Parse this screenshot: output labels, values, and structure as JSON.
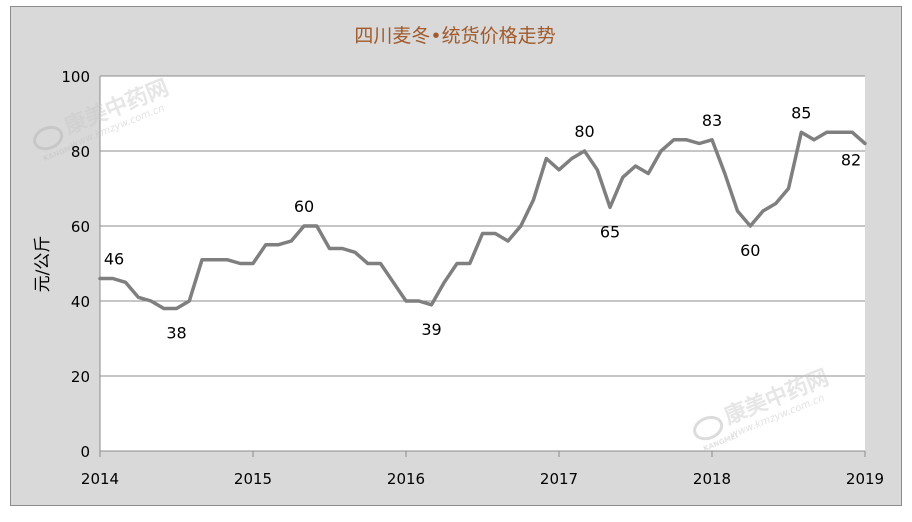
{
  "chart_data": {
    "type": "line",
    "title": "四川麦冬•统货价格走势",
    "xlabel": "",
    "ylabel": "元/公斤",
    "ylim": [
      0,
      100
    ],
    "y_ticks": [
      "0",
      "20",
      "40",
      "60",
      "80",
      "100"
    ],
    "x_ticks": [
      "2014",
      "2015",
      "2016",
      "2017",
      "2018",
      "2019"
    ],
    "x_range": [
      2014,
      2019
    ],
    "grid": true,
    "legend": "none",
    "series": [
      {
        "values": [
          46,
          46,
          45,
          41,
          40,
          38,
          38,
          40,
          51,
          51,
          51,
          50,
          50,
          55,
          55,
          56,
          60,
          60,
          54,
          54,
          53,
          50,
          50,
          45,
          40,
          40,
          39,
          45,
          50,
          50,
          58,
          58,
          56,
          60,
          67,
          78,
          75,
          78,
          80,
          75,
          65,
          73,
          76,
          74,
          80,
          83,
          83,
          82,
          83,
          74,
          64,
          60,
          64,
          66,
          70,
          85,
          83,
          85,
          85,
          85,
          82
        ]
      }
    ],
    "annotations": [
      {
        "label": "46",
        "index": 0
      },
      {
        "label": "38",
        "index": 6
      },
      {
        "label": "60",
        "index": 16
      },
      {
        "label": "39",
        "index": 26
      },
      {
        "label": "80",
        "index": 38
      },
      {
        "label": "65",
        "index": 40
      },
      {
        "label": "83",
        "index": 48
      },
      {
        "label": "60",
        "index": 51
      },
      {
        "label": "85",
        "index": 55
      },
      {
        "label": "82",
        "index": 60
      }
    ]
  },
  "style": {
    "line_color": "#7f7f7f",
    "plot_bg": "#ffffff",
    "frame_bg": "#d9d9d9",
    "grid_color": "#8c8c8c",
    "title_color": "#a05a2c",
    "text_color": "#000000"
  },
  "watermarks": [
    {
      "brand": "康美中药网",
      "site": "www.kmzyw.com.cn",
      "sub": "KANGMEI"
    },
    {
      "brand": "康美中药网",
      "site": "www.kmzyw.com.cn",
      "sub": "KANGMEI"
    }
  ]
}
